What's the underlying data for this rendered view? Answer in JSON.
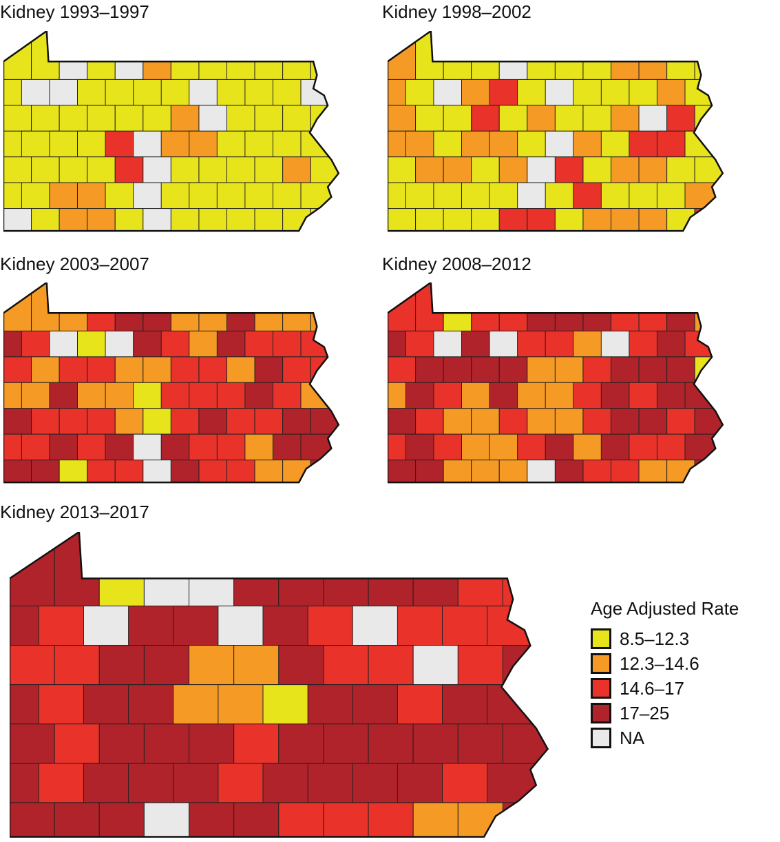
{
  "categories": {
    "Y": {
      "label": "8.5–12.3",
      "color": "#e8e41c"
    },
    "O": {
      "label": "12.3–14.6",
      "color": "#f59a25"
    },
    "R": {
      "label": "14.6–17",
      "color": "#e8322a"
    },
    "D": {
      "label": "17–25",
      "color": "#b0232a"
    },
    "N": {
      "label": "NA",
      "color": "#e9e9e9"
    }
  },
  "legend": {
    "title": "Age Adjusted Rate",
    "order": [
      "Y",
      "O",
      "R",
      "D",
      "N"
    ],
    "labels": [
      "8.5–12.3",
      "12.3–14.6",
      "14.6–17",
      "17–25",
      "NA"
    ]
  },
  "maps": [
    {
      "title": "Kidney 1993–1997",
      "grid": [
        "YYNYNOYYYYYY",
        "YNNYYYYNYYYN",
        "YYYYYYONYYYY",
        "YYYYRNOOYYYY",
        "YYYYRNYYYYOY",
        "YYOOYNYYYYYY",
        "NYOOYNYYYYYY"
      ]
    },
    {
      "title": "Kidney 1998–2002",
      "grid": [
        "OYYYNYYYOOYY",
        "OYNORYNYYYOY",
        "OYYRYOYYONRY",
        "OOYOOYNOYRRY",
        "YOOYONRYOOYY",
        "YYYYYNYRYYYO",
        "YYYYRRYOOOYR"
      ]
    },
    {
      "title": "Kidney 2003–2007",
      "grid": [
        "OOORDDOODOOO",
        "DRNYNDRODRRR",
        "RORROORRODRR",
        "OODOOYRRRDRO",
        "DRRROYRDRRDD",
        "RRDRDNDRRODD",
        "DDYRRNDRROOD"
      ]
    },
    {
      "title": "Kidney 2008–2012",
      "grid": [
        "RRYRRDDDRRDO",
        "DRNDNRRONRDR",
        "RDDDDOORDDDY",
        "ODRODOORDRDD",
        "DROOROORDDRD",
        "RDROORDODRRD",
        "DDOOONDRROOD"
      ]
    },
    {
      "title": "Kidney 2013–2017",
      "grid": [
        "DDYNNDDDDDRR",
        "DRNDDNDRNRRR",
        "RRDDOODRRNRD",
        "DRDDOOYDDRDD",
        "DRDDDRDDDDDD",
        "DRDDDRDDDDRD",
        "DDDNDDRRROOD"
      ]
    }
  ]
}
